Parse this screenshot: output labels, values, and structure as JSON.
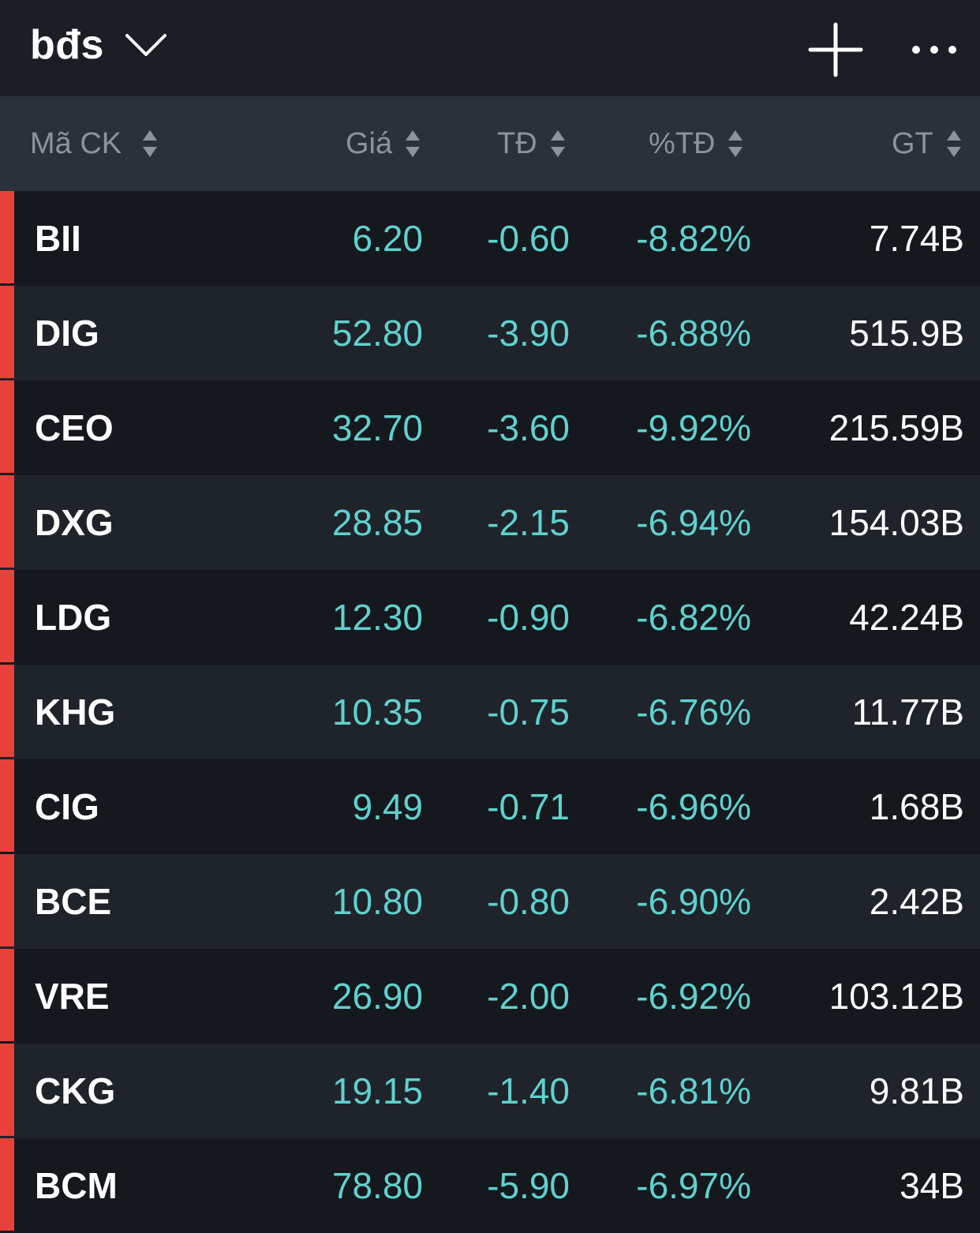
{
  "topbar": {
    "list_name": "bđs",
    "dropdown_icon": "chevron-down-icon",
    "add_icon": "plus-icon",
    "more_icon": "more-horizontal-icon"
  },
  "table": {
    "headers": [
      {
        "key": "symbol",
        "label": "Mã CK"
      },
      {
        "key": "price",
        "label": "Giá"
      },
      {
        "key": "change",
        "label": "TĐ"
      },
      {
        "key": "percent",
        "label": "%TĐ"
      },
      {
        "key": "value",
        "label": "GT"
      }
    ],
    "rows": [
      {
        "symbol": "BII",
        "price": "6.20",
        "change": "-0.60",
        "percent": "-8.82%",
        "value": "7.74B"
      },
      {
        "symbol": "DIG",
        "price": "52.80",
        "change": "-3.90",
        "percent": "-6.88%",
        "value": "515.9B"
      },
      {
        "symbol": "CEO",
        "price": "32.70",
        "change": "-3.60",
        "percent": "-9.92%",
        "value": "215.59B"
      },
      {
        "symbol": "DXG",
        "price": "28.85",
        "change": "-2.15",
        "percent": "-6.94%",
        "value": "154.03B"
      },
      {
        "symbol": "LDG",
        "price": "12.30",
        "change": "-0.90",
        "percent": "-6.82%",
        "value": "42.24B"
      },
      {
        "symbol": "KHG",
        "price": "10.35",
        "change": "-0.75",
        "percent": "-6.76%",
        "value": "11.77B"
      },
      {
        "symbol": "CIG",
        "price": "9.49",
        "change": "-0.71",
        "percent": "-6.96%",
        "value": "1.68B"
      },
      {
        "symbol": "BCE",
        "price": "10.80",
        "change": "-0.80",
        "percent": "-6.90%",
        "value": "2.42B"
      },
      {
        "symbol": "VRE",
        "price": "26.90",
        "change": "-2.00",
        "percent": "-6.92%",
        "value": "103.12B"
      },
      {
        "symbol": "CKG",
        "price": "19.15",
        "change": "-1.40",
        "percent": "-6.81%",
        "value": "9.81B"
      },
      {
        "symbol": "BCM",
        "price": "78.80",
        "change": "-5.90",
        "percent": "-6.97%",
        "value": "34B"
      }
    ]
  },
  "colors": {
    "background": "#15181d",
    "row_alt": "#1f232a",
    "header_bg": "#2b313a",
    "topbar_bg": "#1b1f25",
    "floor_price": "#5fd1cf",
    "down_bar": "#e8413c",
    "header_text": "#8b939e"
  }
}
